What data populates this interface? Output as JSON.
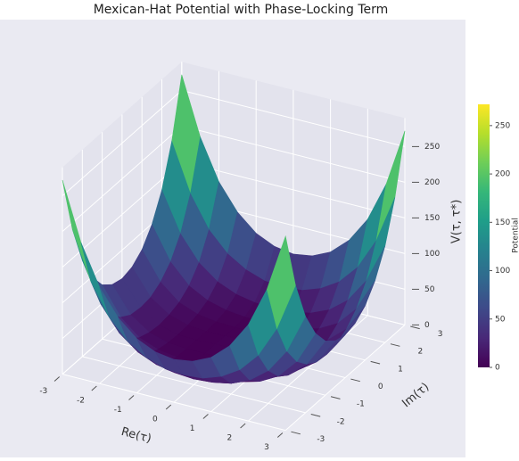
{
  "chart_data": {
    "type": "surface3d",
    "title": "Mexican-Hat Potential with Phase-Locking Term",
    "x_label": "Re(τ)",
    "y_label": "Im(τ)",
    "z_label": "V(τ, τ*)",
    "colorbar_label": "Potential",
    "x": [
      -3,
      -2.5,
      -2,
      -1.5,
      -1,
      -0.5,
      0,
      0.5,
      1,
      1.5,
      2,
      2.5,
      3
    ],
    "y": [
      -3,
      -2.5,
      -2,
      -1.5,
      -1,
      -0.5,
      0,
      0.5,
      1,
      1.5,
      2,
      2.5,
      3
    ],
    "z": [
      [
        272,
        191,
        135,
        99,
        76,
        64,
        60,
        64,
        76,
        99,
        135,
        191,
        272
      ],
      [
        191,
        124,
        80,
        53,
        37,
        28,
        26,
        28,
        37,
        53,
        80,
        124,
        191
      ],
      [
        135,
        80,
        46,
        26,
        15,
        10,
        8,
        10,
        15,
        26,
        46,
        80,
        135
      ],
      [
        99,
        53,
        26,
        12,
        5,
        2,
        1,
        2,
        5,
        12,
        26,
        53,
        99
      ],
      [
        76,
        37,
        15,
        5,
        1,
        0,
        0,
        0,
        1,
        5,
        15,
        37,
        76
      ],
      [
        64,
        28,
        10,
        2,
        0,
        0,
        1,
        0,
        0,
        2,
        10,
        28,
        64
      ],
      [
        60,
        26,
        8,
        1,
        0,
        1,
        1,
        1,
        0,
        1,
        8,
        26,
        60
      ],
      [
        64,
        28,
        10,
        2,
        0,
        0,
        1,
        0,
        0,
        2,
        10,
        28,
        64
      ],
      [
        76,
        37,
        15,
        5,
        1,
        0,
        0,
        0,
        1,
        5,
        15,
        37,
        76
      ],
      [
        99,
        53,
        26,
        12,
        5,
        2,
        1,
        2,
        5,
        12,
        26,
        53,
        99
      ],
      [
        135,
        80,
        46,
        26,
        15,
        10,
        8,
        10,
        15,
        26,
        46,
        80,
        135
      ],
      [
        191,
        124,
        80,
        53,
        37,
        28,
        26,
        28,
        37,
        53,
        80,
        124,
        191
      ],
      [
        272,
        191,
        135,
        99,
        76,
        64,
        60,
        64,
        76,
        99,
        135,
        191,
        272
      ]
    ],
    "xlim": [
      -3,
      3
    ],
    "ylim": [
      -3,
      3
    ],
    "zlim": [
      0,
      290
    ],
    "xticks": [
      -3,
      -2,
      -1,
      0,
      1,
      2,
      3
    ],
    "yticks": [
      -3,
      -2,
      -1,
      0,
      1,
      2,
      3
    ],
    "zticks": [
      0,
      50,
      100,
      150,
      200,
      250
    ],
    "clim": [
      0,
      272
    ],
    "colorbar_ticks": [
      0,
      50,
      100,
      150,
      200,
      250
    ],
    "colormap": [
      "#440154",
      "#482878",
      "#3e4989",
      "#31688e",
      "#26828e",
      "#1f9e89",
      "#35b779",
      "#6ece58",
      "#b5de2b",
      "#fde725"
    ],
    "grid": true
  }
}
